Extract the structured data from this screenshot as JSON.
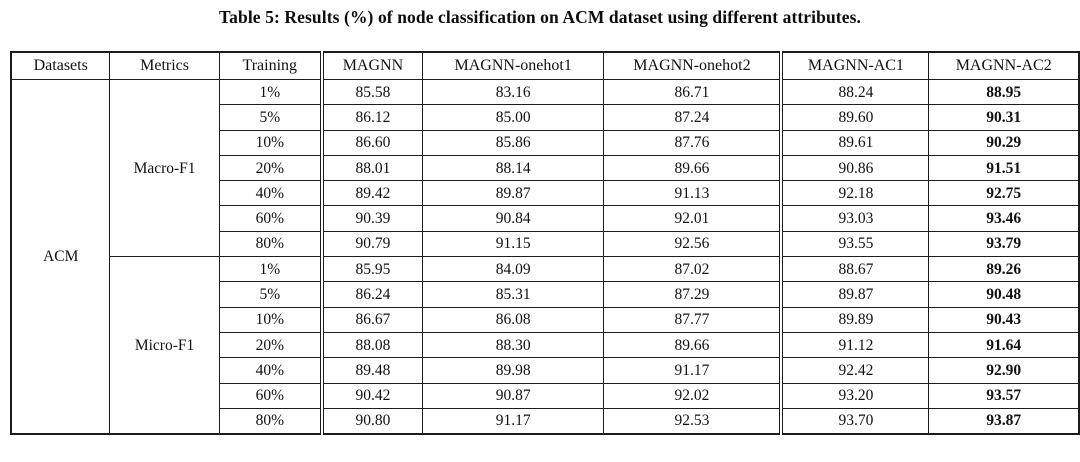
{
  "title": "Table 5: Results (%) of node classification on ACM dataset using different attributes.",
  "table": {
    "columns": [
      "Datasets",
      "Metrics",
      "Training",
      "MAGNN",
      "MAGNN-onehot1",
      "MAGNN-onehot2",
      "MAGNN-AC1",
      "MAGNN-AC2"
    ],
    "dataset": "ACM",
    "best_column": "MAGNN-AC2",
    "groups": [
      {
        "metric": "Macro-F1",
        "rows": [
          {
            "training": "1%",
            "values": [
              "85.58",
              "83.16",
              "86.71",
              "88.24",
              "88.95"
            ]
          },
          {
            "training": "5%",
            "values": [
              "86.12",
              "85.00",
              "87.24",
              "89.60",
              "90.31"
            ]
          },
          {
            "training": "10%",
            "values": [
              "86.60",
              "85.86",
              "87.76",
              "89.61",
              "90.29"
            ]
          },
          {
            "training": "20%",
            "values": [
              "88.01",
              "88.14",
              "89.66",
              "90.86",
              "91.51"
            ]
          },
          {
            "training": "40%",
            "values": [
              "89.42",
              "89.87",
              "91.13",
              "92.18",
              "92.75"
            ]
          },
          {
            "training": "60%",
            "values": [
              "90.39",
              "90.84",
              "92.01",
              "93.03",
              "93.46"
            ]
          },
          {
            "training": "80%",
            "values": [
              "90.79",
              "91.15",
              "92.56",
              "93.55",
              "93.79"
            ]
          }
        ]
      },
      {
        "metric": "Micro-F1",
        "rows": [
          {
            "training": "1%",
            "values": [
              "85.95",
              "84.09",
              "87.02",
              "88.67",
              "89.26"
            ]
          },
          {
            "training": "5%",
            "values": [
              "86.24",
              "85.31",
              "87.29",
              "89.87",
              "90.48"
            ]
          },
          {
            "training": "10%",
            "values": [
              "86.67",
              "86.08",
              "87.77",
              "89.89",
              "90.43"
            ]
          },
          {
            "training": "20%",
            "values": [
              "88.08",
              "88.30",
              "89.66",
              "91.12",
              "91.64"
            ]
          },
          {
            "training": "40%",
            "values": [
              "89.48",
              "89.98",
              "91.17",
              "92.42",
              "92.90"
            ]
          },
          {
            "training": "60%",
            "values": [
              "90.42",
              "90.87",
              "92.02",
              "93.20",
              "93.57"
            ]
          },
          {
            "training": "80%",
            "values": [
              "90.80",
              "91.17",
              "92.53",
              "93.70",
              "93.87"
            ]
          }
        ]
      }
    ]
  },
  "colors": {
    "text": "#111111",
    "border": "#1c1c1c",
    "background": "#ffffff"
  }
}
